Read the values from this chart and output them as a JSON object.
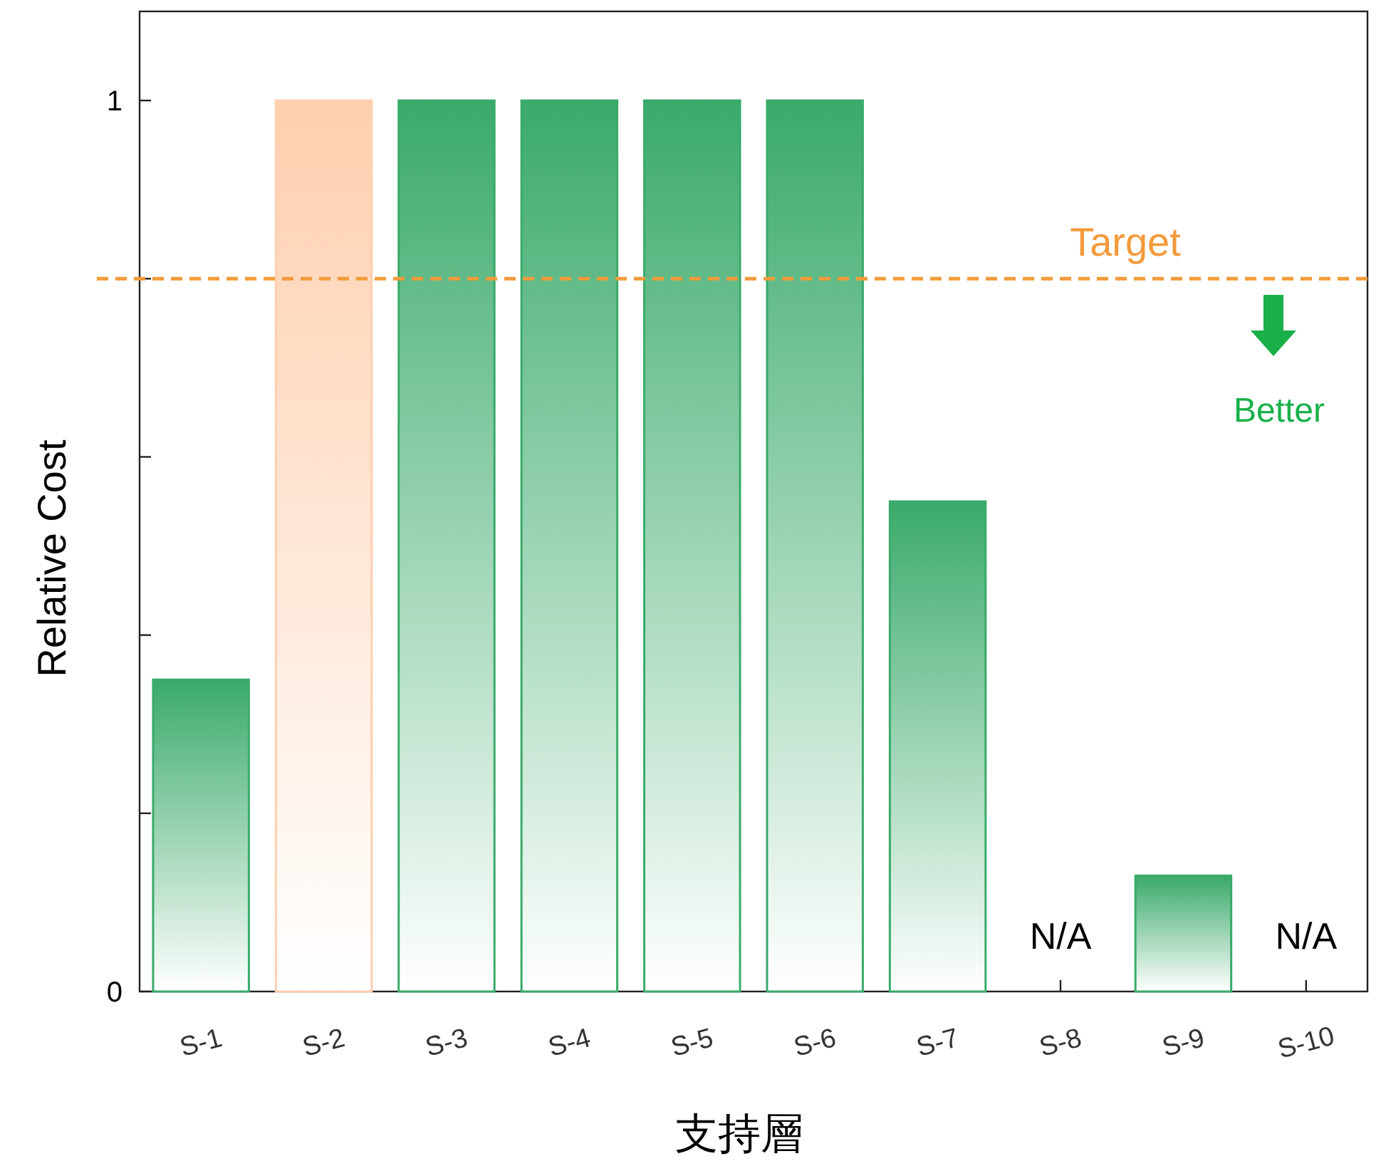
{
  "chart_data": {
    "type": "bar",
    "xlabel": "支持層",
    "ylabel": "Relative Cost",
    "categories": [
      "S-1",
      "S-2",
      "S-3",
      "S-4",
      "S-5",
      "S-6",
      "S-7",
      "S-8",
      "S-9",
      "S-10"
    ],
    "values": [
      0.35,
      1,
      1,
      1,
      1,
      1,
      0.55,
      null,
      0.13,
      null
    ],
    "value_labels": [
      null,
      null,
      null,
      null,
      null,
      null,
      null,
      "N/A",
      null,
      "N/A"
    ],
    "colors": [
      "#3aaa6a",
      "#ffcfae",
      "#3aaa6a",
      "#3aaa6a",
      "#3aaa6a",
      "#3aaa6a",
      "#3aaa6a",
      "#3aaa6a",
      "#3aaa6a",
      "#3aaa6a"
    ],
    "ylim": [
      0,
      1.1
    ],
    "yticks": [
      0,
      {
        "value": 0.2,
        "label": null
      },
      {
        "value": 0.4,
        "label": null
      },
      {
        "value": 0.6,
        "label": null
      },
      {
        "value": 0.8,
        "label": null
      },
      1
    ],
    "ref_lines": [
      {
        "axis": "y",
        "value": 0.8,
        "label": "Target",
        "color": "#f39a3a",
        "line_style": "dashed"
      }
    ],
    "annotations": [
      "Better"
    ],
    "grid": false
  }
}
